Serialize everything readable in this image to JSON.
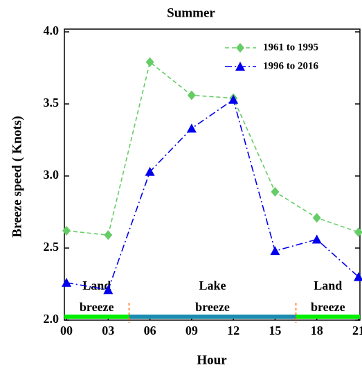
{
  "chart_data": {
    "type": "line",
    "title": "Summer",
    "x_label": "Hour",
    "y_label": "Breeze speed ( Knots)",
    "x": [
      0,
      3,
      6,
      9,
      12,
      15,
      18,
      21
    ],
    "xlim": [
      -0.15,
      21.1
    ],
    "ylim": [
      2,
      4
    ],
    "xticks": [
      {
        "value": 0,
        "label": "00"
      },
      {
        "value": 3,
        "label": "03"
      },
      {
        "value": 6,
        "label": "06"
      },
      {
        "value": 9,
        "label": "09"
      },
      {
        "value": 12,
        "label": "12"
      },
      {
        "value": 15,
        "label": "15"
      },
      {
        "value": 18,
        "label": "18"
      },
      {
        "value": 21,
        "label": "21"
      }
    ],
    "yticks": [
      {
        "value": 2,
        "label": "2.0"
      },
      {
        "value": 2.5,
        "label": "2.5"
      },
      {
        "value": 3,
        "label": "3.0"
      },
      {
        "value": 3.5,
        "label": "3.5"
      },
      {
        "value": 4,
        "label": "4.0"
      }
    ],
    "series": [
      {
        "name": "1961 to 1995",
        "color": "#66cc66",
        "marker": "diamond",
        "dash": "6,4",
        "values": [
          2.62,
          2.59,
          3.79,
          3.56,
          3.54,
          2.89,
          2.71,
          2.61
        ]
      },
      {
        "name": "1996 to 2016",
        "color": "#0000ee",
        "marker": "triangle",
        "dash": "10,4,2,4",
        "values": [
          2.26,
          2.21,
          3.03,
          3.33,
          3.53,
          2.48,
          2.56,
          2.3
        ]
      }
    ],
    "regions": [
      {
        "lines": [
          "Land",
          "breeze"
        ],
        "start": -0.15,
        "end": 4.5,
        "color": "#00ee00"
      },
      {
        "lines": [
          "Lake",
          "breeze"
        ],
        "start": 4.5,
        "end": 16.5,
        "color": "#1a8cb0"
      },
      {
        "lines": [
          "Land",
          "breeze"
        ],
        "start": 16.5,
        "end": 21.1,
        "color": "#00ee00"
      }
    ]
  }
}
